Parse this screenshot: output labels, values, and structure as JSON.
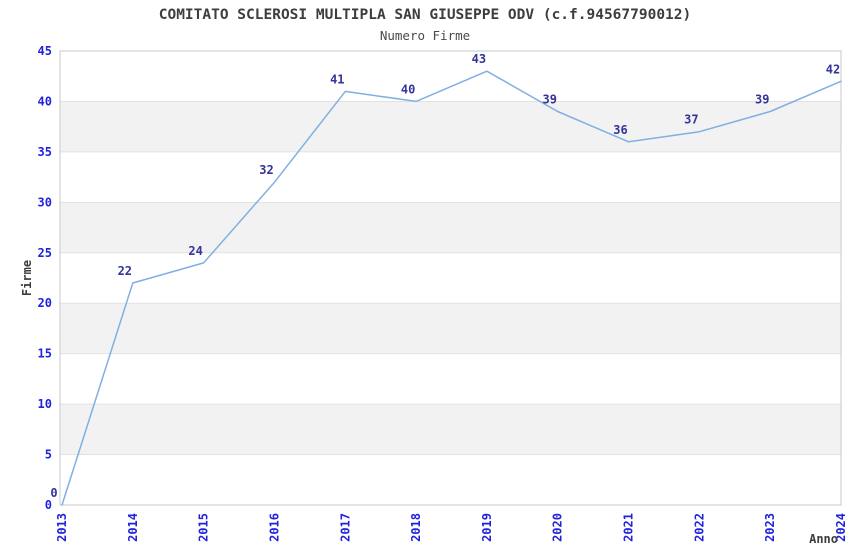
{
  "header": {
    "title": "COMITATO SCLEROSI MULTIPLA SAN GIUSEPPE ODV (c.f.94567790012)",
    "subtitle": "Numero Firme"
  },
  "chart_data": {
    "type": "line",
    "title": "COMITATO SCLEROSI MULTIPLA SAN GIUSEPPE ODV (c.f.94567790012)",
    "subtitle": "Numero Firme",
    "xlabel": "Anno",
    "ylabel": "Firme",
    "categories": [
      "2013",
      "2014",
      "2015",
      "2016",
      "2017",
      "2018",
      "2019",
      "2020",
      "2021",
      "2022",
      "2023",
      "2024"
    ],
    "values": [
      0,
      22,
      24,
      32,
      41,
      40,
      43,
      39,
      36,
      37,
      39,
      42
    ],
    "point_labels": [
      "0",
      "22",
      "24",
      "32",
      "41",
      "40",
      "43",
      "39",
      "36",
      "37",
      "39",
      "42"
    ],
    "ylim": [
      0,
      45
    ],
    "ytick_step": 5,
    "grid": true,
    "banded_rows": true,
    "legend": "none",
    "colors": {
      "line": "#7fb0e2",
      "point_label": "#333399",
      "tick_label": "#2222dd",
      "axis_title": "#3d3d3d",
      "title_text": "#3d3d3d",
      "subtitle_text": "#4a4a4a",
      "band": "#f2f2f2",
      "grid": "#e2e2e2",
      "border": "#c9c9c9",
      "background": "#ffffff"
    }
  }
}
